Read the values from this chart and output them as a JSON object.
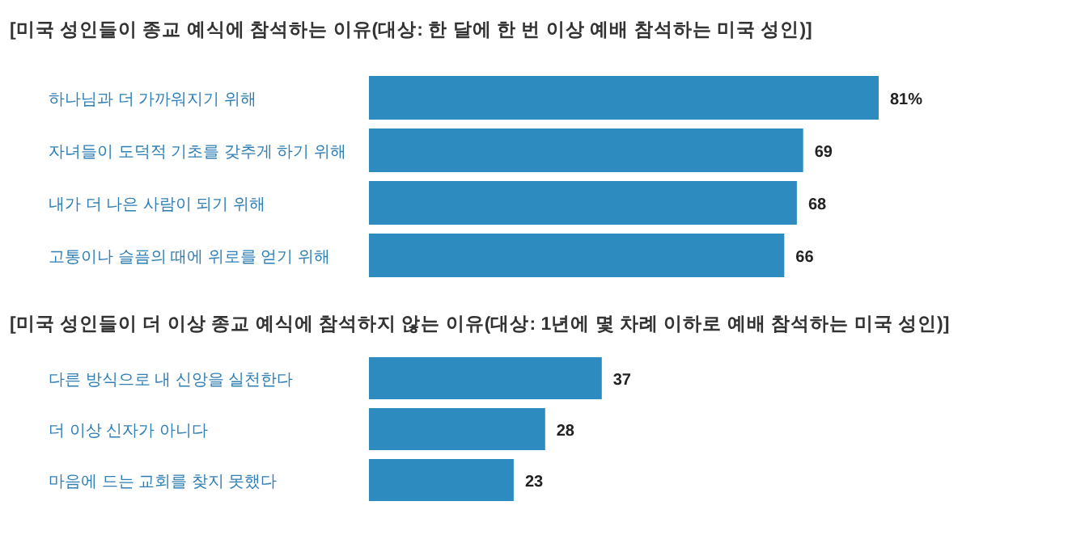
{
  "chart_data": [
    {
      "type": "bar",
      "orientation": "horizontal",
      "title": "[미국 성인들이 종교 예식에 참석하는 이유(대상: 한 달에 한 번 이상 예배 참석하는 미국 성인)]",
      "categories": [
        "하나님과 더 가까워지기 위해",
        "자녀들이 도덕적 기초를 갖추게 하기 위해",
        "내가 더 나은 사람이 되기 위해",
        "고통이나 슬픔의 때에 위로를 얻기 위해"
      ],
      "values": [
        81,
        69,
        68,
        66
      ],
      "value_labels": [
        "81%",
        "69",
        "68",
        "66"
      ],
      "color": "#2e8bc0"
    },
    {
      "type": "bar",
      "orientation": "horizontal",
      "title": "[미국 성인들이 더 이상 종교 예식에 참석하지 않는 이유(대상: 1년에 몇 차례 이하로 예배 참석하는 미국 성인)]",
      "categories": [
        "다른 방식으로 내 신앙을 실천한다",
        "더 이상 신자가 아니다",
        "마음에 드는 교회를 찾지 못했다"
      ],
      "values": [
        37,
        28,
        23
      ],
      "data_labels": true,
      "color": "#2e8bc0"
    }
  ]
}
